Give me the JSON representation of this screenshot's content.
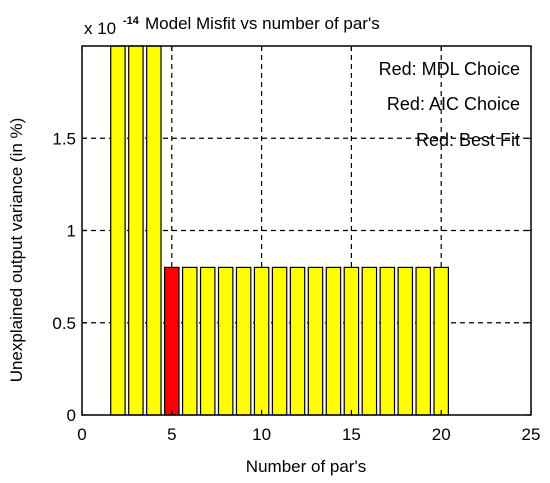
{
  "chart_data": {
    "type": "bar",
    "title": "Model Misfit vs number of par's",
    "xlabel": "Number of par's",
    "ylabel": "Unexplained output variance (in %)",
    "y_exponent_prefix": "x 10",
    "y_exponent_power": "-14",
    "xlim": [
      0,
      25
    ],
    "ylim": [
      0,
      2
    ],
    "x_ticks": [
      0,
      5,
      10,
      15,
      20,
      25
    ],
    "x_tick_labels": [
      "0",
      "5",
      "10",
      "15",
      "20",
      "25"
    ],
    "y_ticks": [
      0,
      0.5,
      1,
      1.5
    ],
    "y_tick_labels": [
      "0",
      "0.5",
      "1",
      "1.5"
    ],
    "grid": true,
    "x": [
      2,
      3,
      4,
      5,
      6,
      7,
      8,
      9,
      10,
      11,
      12,
      13,
      14,
      15,
      16,
      17,
      18,
      19,
      20
    ],
    "values": [
      2.0,
      2.0,
      2.0,
      0.8,
      0.8,
      0.8,
      0.8,
      0.8,
      0.8,
      0.8,
      0.8,
      0.8,
      0.8,
      0.8,
      0.8,
      0.8,
      0.8,
      0.8,
      0.8
    ],
    "highlight_x": 5,
    "bar_color": "#ffff00",
    "highlight_color": "#ff0000",
    "legend_placement": "top-right",
    "legend": [
      "Red: MDL Choice",
      "Red: AIC Choice",
      "Red: Best Fit"
    ]
  }
}
